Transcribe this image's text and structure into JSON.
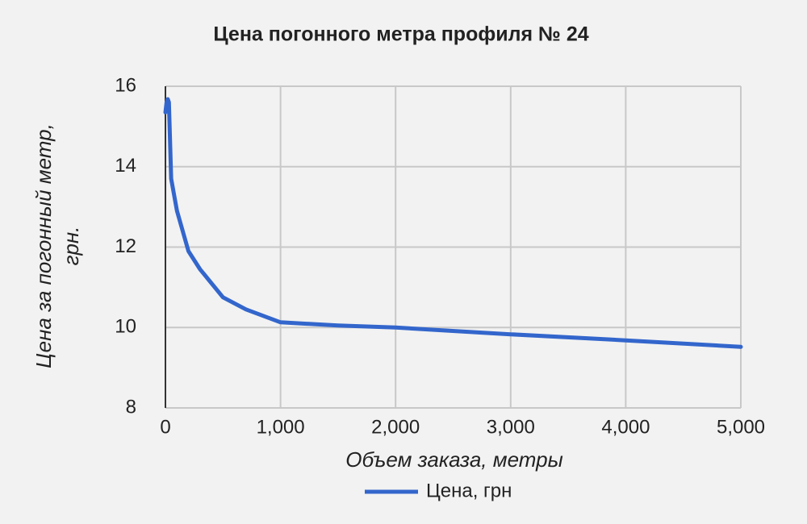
{
  "chart_data": {
    "type": "line",
    "title": "Цена погонного метра профиля № 24",
    "x_label": "Объем заказа, метры",
    "y_label": [
      "Цена за погонный метр,",
      "грн."
    ],
    "x": [
      0,
      10,
      20,
      30,
      50,
      100,
      200,
      300,
      500,
      700,
      1000,
      1500,
      2000,
      3000,
      4000,
      5000
    ],
    "series": [
      {
        "name": "Цена, грн",
        "color": "#3366cc",
        "values": [
          15.35,
          15.6,
          15.68,
          15.6,
          13.7,
          12.9,
          11.9,
          11.45,
          10.75,
          10.45,
          10.13,
          10.05,
          10.0,
          9.83,
          9.68,
          9.52
        ]
      }
    ],
    "xlim": [
      0,
      5000
    ],
    "xticks": [
      0,
      {
        "value": 1000,
        "label": "1,000"
      },
      {
        "value": 2000,
        "label": "2,000"
      },
      {
        "value": 3000,
        "label": "3,000"
      },
      {
        "value": 4000,
        "label": "4,000"
      },
      {
        "value": 5000,
        "label": "5,000"
      }
    ],
    "ylim": [
      8,
      16
    ],
    "yticks": [
      8,
      10,
      12,
      14,
      16
    ],
    "grid": true,
    "legend": "bottom"
  }
}
